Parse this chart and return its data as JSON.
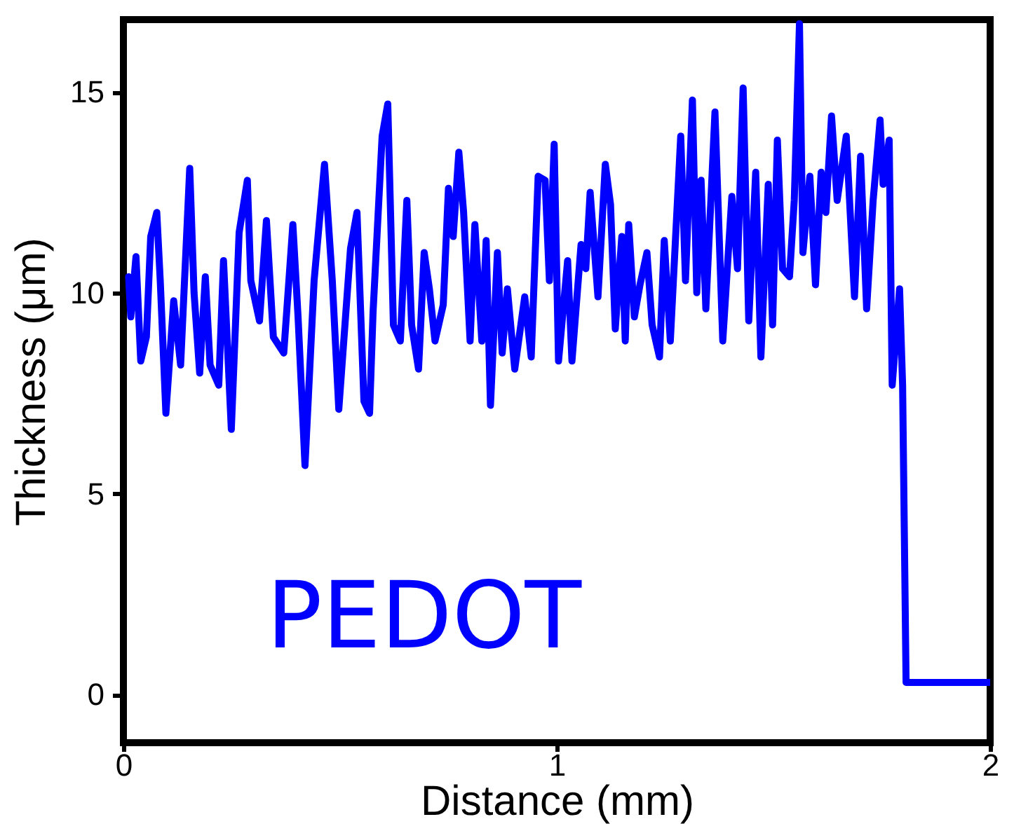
{
  "chart_data": {
    "type": "line",
    "xlabel": "Distance (mm)",
    "ylabel": "Thickness (μm)",
    "xlim": [
      0,
      2
    ],
    "ylim": [
      -1.2,
      16.8
    ],
    "xticks": [
      0,
      1,
      2
    ],
    "yticks": [
      0,
      5,
      10,
      15
    ],
    "x": [
      0.012,
      0.017,
      0.029,
      0.04,
      0.053,
      0.063,
      0.077,
      0.085,
      0.098,
      0.116,
      0.132,
      0.153,
      0.163,
      0.176,
      0.189,
      0.2,
      0.22,
      0.231,
      0.249,
      0.267,
      0.286,
      0.294,
      0.314,
      0.33,
      0.346,
      0.37,
      0.391,
      0.403,
      0.419,
      0.44,
      0.464,
      0.482,
      0.497,
      0.524,
      0.539,
      0.555,
      0.568,
      0.576,
      0.597,
      0.61,
      0.623,
      0.639,
      0.654,
      0.665,
      0.681,
      0.694,
      0.706,
      0.719,
      0.738,
      0.75,
      0.761,
      0.774,
      0.785,
      0.8,
      0.811,
      0.827,
      0.837,
      0.847,
      0.863,
      0.874,
      0.886,
      0.903,
      0.926,
      0.941,
      0.957,
      0.973,
      0.983,
      0.994,
      1.004,
      1.025,
      1.035,
      1.056,
      1.067,
      1.077,
      1.095,
      1.112,
      1.124,
      1.135,
      1.15,
      1.158,
      1.166,
      1.179,
      1.192,
      1.208,
      1.22,
      1.237,
      1.248,
      1.262,
      1.286,
      1.297,
      1.313,
      1.323,
      1.333,
      1.344,
      1.365,
      1.383,
      1.404,
      1.417,
      1.43,
      1.443,
      1.459,
      1.471,
      1.488,
      1.498,
      1.509,
      1.521,
      1.537,
      1.548,
      1.56,
      1.568,
      1.584,
      1.597,
      1.61,
      1.621,
      1.634,
      1.647,
      1.668,
      1.687,
      1.701,
      1.715,
      1.73,
      1.746,
      1.753,
      1.767,
      1.774,
      1.791,
      1.798,
      1.806,
      2.0
    ],
    "series": [
      {
        "name": "PEDOT",
        "color": "#0000ff",
        "values": [
          10.4,
          9.4,
          10.9,
          8.3,
          8.9,
          11.4,
          12.0,
          10.3,
          7.0,
          9.8,
          8.2,
          13.1,
          10.0,
          8.0,
          10.4,
          8.2,
          7.7,
          10.8,
          6.6,
          11.5,
          12.8,
          10.3,
          9.3,
          11.8,
          8.9,
          8.5,
          11.7,
          9.4,
          5.7,
          10.3,
          13.2,
          10.3,
          7.1,
          11.1,
          12.0,
          7.3,
          7.0,
          9.5,
          13.9,
          14.7,
          9.2,
          8.8,
          12.3,
          9.2,
          8.1,
          11.0,
          10.1,
          8.8,
          9.7,
          12.6,
          11.4,
          13.5,
          12.0,
          8.8,
          11.7,
          8.8,
          11.3,
          7.2,
          11.0,
          8.5,
          10.1,
          8.1,
          9.9,
          8.4,
          12.9,
          12.8,
          10.3,
          13.7,
          8.3,
          10.8,
          8.3,
          11.2,
          10.6,
          12.5,
          9.9,
          13.2,
          12.2,
          9.1,
          11.4,
          8.8,
          11.7,
          9.4,
          10.2,
          11.0,
          9.2,
          8.4,
          11.3,
          8.8,
          13.9,
          10.3,
          14.8,
          10.0,
          12.8,
          9.6,
          14.5,
          8.8,
          12.4,
          10.6,
          15.1,
          9.3,
          13.0,
          8.4,
          12.7,
          9.2,
          13.8,
          10.6,
          10.4,
          12.3,
          16.7,
          11.0,
          12.9,
          10.2,
          13.0,
          12.0,
          14.4,
          12.3,
          13.9,
          9.9,
          13.4,
          9.6,
          12.3,
          14.3,
          12.7,
          13.8,
          7.7,
          10.1,
          7.7,
          0.3,
          0.3
        ]
      }
    ]
  }
}
